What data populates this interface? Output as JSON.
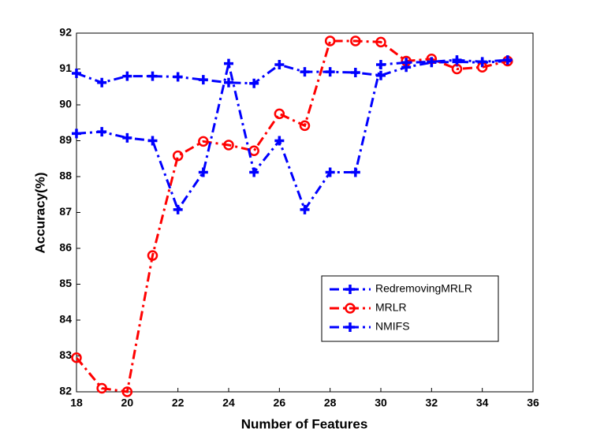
{
  "chart_data": {
    "type": "line",
    "xlabel": "Number of Features",
    "ylabel": "Accuracy(%)",
    "x": [
      18,
      19,
      20,
      21,
      22,
      23,
      24,
      25,
      26,
      27,
      28,
      29,
      30,
      31,
      32,
      33,
      34,
      35
    ],
    "series": [
      {
        "name": "RedremovingMRLR",
        "color": "#0000ff",
        "marker": "plus",
        "values": [
          90.88,
          90.62,
          90.8,
          90.8,
          90.78,
          90.7,
          90.62,
          90.6,
          91.12,
          90.92,
          90.92,
          90.9,
          90.82,
          91.05,
          91.18,
          91.2,
          91.18,
          91.22
        ]
      },
      {
        "name": "MRLR",
        "color": "#ff0000",
        "marker": "circle",
        "values": [
          82.95,
          82.1,
          82.0,
          85.8,
          88.58,
          88.98,
          88.88,
          88.72,
          89.75,
          89.42,
          91.78,
          91.78,
          91.75,
          91.22,
          91.28,
          91.0,
          91.05,
          91.22
        ]
      },
      {
        "name": "NMIFS",
        "color": "#0000ff",
        "marker": "plus",
        "values": [
          89.2,
          89.25,
          89.08,
          89.0,
          87.08,
          88.12,
          91.15,
          88.12,
          89.0,
          87.08,
          88.12,
          88.12,
          91.12,
          91.18,
          91.2,
          91.25,
          91.2,
          91.25
        ]
      }
    ],
    "xlim": [
      18,
      36
    ],
    "xticks": [
      18,
      20,
      22,
      24,
      26,
      28,
      30,
      32,
      34,
      36
    ],
    "ylim": [
      82,
      92
    ],
    "yticks": [
      82,
      83,
      84,
      85,
      86,
      87,
      88,
      89,
      90,
      91,
      92
    ]
  }
}
